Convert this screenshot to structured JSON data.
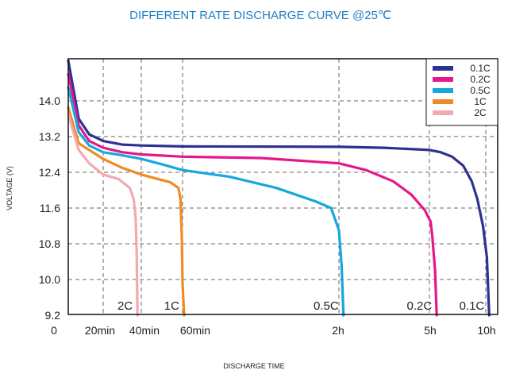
{
  "chart_data": {
    "type": "line",
    "title": "DIFFERENT RATE DISCHARGE CURVE @25℃",
    "xlabel": "DISCHARGE TIME",
    "ylabel": "VOLTAGE (V)",
    "ylim": [
      9.2,
      15.2
    ],
    "yticks": [
      "9.2",
      "10.0",
      "10.8",
      "11.6",
      "12.4",
      "13.2",
      "14.0"
    ],
    "xticks": [
      "0",
      "20min",
      "40min",
      "60min",
      "2h",
      "5h",
      "10h"
    ],
    "grid": true,
    "legend_position": "top-right",
    "x_scale": "non-uniform (breaks at 20min, 40min, 60min, 2h, 5h, 10h)",
    "series": [
      {
        "name": "0.1C",
        "color": "#2e3192",
        "end_label": "0.1C",
        "points": [
          [
            0,
            14.9
          ],
          [
            0.3,
            13.6
          ],
          [
            0.6,
            13.25
          ],
          [
            1,
            13.1
          ],
          [
            1.5,
            13.02
          ],
          [
            2,
            13.0
          ],
          [
            3,
            12.98
          ],
          [
            4,
            12.97
          ],
          [
            4.5,
            12.95
          ],
          [
            5,
            12.9
          ],
          [
            5.2,
            12.85
          ],
          [
            5.4,
            12.75
          ],
          [
            5.6,
            12.55
          ],
          [
            5.75,
            12.2
          ],
          [
            5.85,
            11.8
          ],
          [
            5.95,
            11.2
          ],
          [
            6.02,
            10.5
          ],
          [
            6.06,
            9.2
          ]
        ]
      },
      {
        "name": "0.2C",
        "color": "#e5178b",
        "end_label": "0.2C",
        "points": [
          [
            0,
            14.6
          ],
          [
            0.3,
            13.45
          ],
          [
            0.6,
            13.1
          ],
          [
            1,
            12.95
          ],
          [
            1.5,
            12.85
          ],
          [
            2,
            12.8
          ],
          [
            3,
            12.75
          ],
          [
            3.5,
            12.72
          ],
          [
            4,
            12.6
          ],
          [
            4.3,
            12.45
          ],
          [
            4.6,
            12.2
          ],
          [
            4.8,
            11.9
          ],
          [
            4.95,
            11.55
          ],
          [
            5.02,
            11.3
          ],
          [
            5.05,
            11.0
          ],
          [
            5.1,
            10.2
          ],
          [
            5.13,
            9.2
          ]
        ]
      },
      {
        "name": "0.5C",
        "color": "#15a8e0",
        "end_label": "0.5C",
        "points": [
          [
            0,
            14.3
          ],
          [
            0.3,
            13.3
          ],
          [
            0.6,
            13.0
          ],
          [
            1,
            12.85
          ],
          [
            1.5,
            12.78
          ],
          [
            2,
            12.7
          ],
          [
            2.5,
            12.58
          ],
          [
            3,
            12.45
          ],
          [
            3.3,
            12.3
          ],
          [
            3.6,
            12.05
          ],
          [
            3.85,
            11.75
          ],
          [
            3.95,
            11.6
          ],
          [
            4,
            11.1
          ],
          [
            4.03,
            10.3
          ],
          [
            4.05,
            9.2
          ]
        ]
      },
      {
        "name": "1C",
        "color": "#f08a24",
        "end_label": "1C",
        "points": [
          [
            0,
            13.85
          ],
          [
            0.3,
            13.05
          ],
          [
            0.5,
            12.95
          ],
          [
            0.8,
            12.8
          ],
          [
            1,
            12.7
          ],
          [
            1.5,
            12.5
          ],
          [
            2,
            12.35
          ],
          [
            2.4,
            12.25
          ],
          [
            2.7,
            12.18
          ],
          [
            2.9,
            12.05
          ],
          [
            2.95,
            11.8
          ],
          [
            2.98,
            11.0
          ],
          [
            3,
            9.9
          ],
          [
            3.01,
            9.2
          ]
        ]
      },
      {
        "name": "2C",
        "color": "#f4a9b1",
        "end_label": "2C",
        "points": [
          [
            0,
            13.7
          ],
          [
            0.3,
            12.9
          ],
          [
            0.6,
            12.6
          ],
          [
            1,
            12.35
          ],
          [
            1.4,
            12.25
          ],
          [
            1.7,
            12.05
          ],
          [
            1.8,
            11.8
          ],
          [
            1.85,
            11.4
          ],
          [
            1.88,
            10.6
          ],
          [
            1.9,
            9.2
          ]
        ]
      }
    ]
  }
}
